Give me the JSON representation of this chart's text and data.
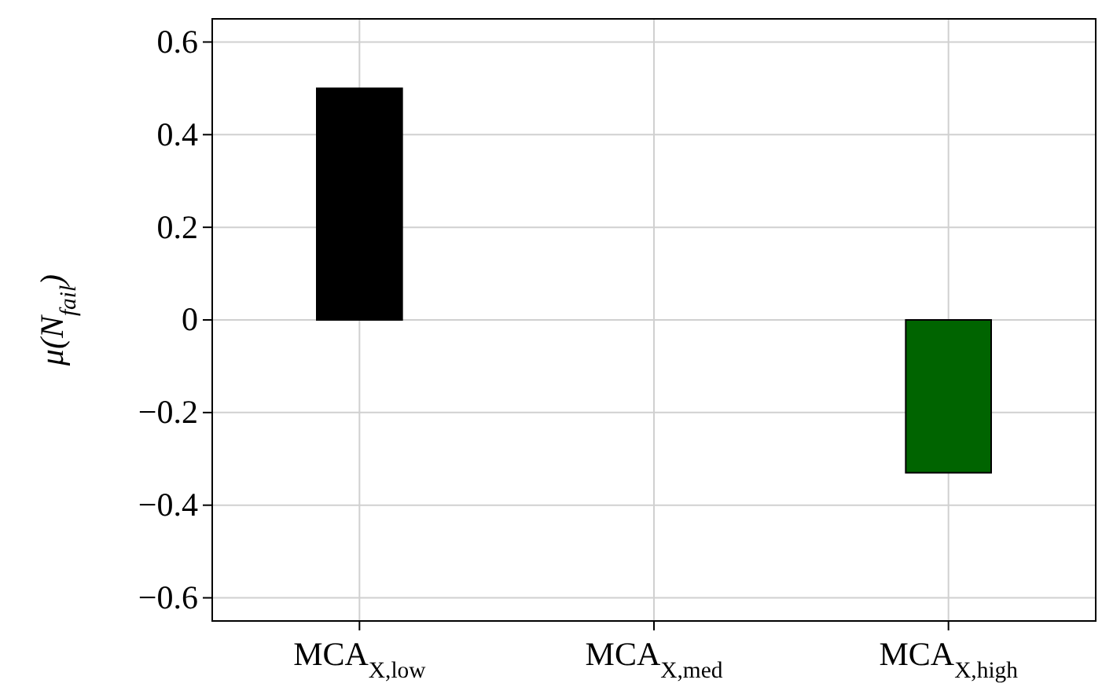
{
  "chart_data": {
    "type": "bar",
    "categories": [
      "MCA$_{X,low}$",
      "MCA$_{X,med}$",
      "MCA$_{X,high}$"
    ],
    "values": [
      0.5,
      0,
      -0.33
    ],
    "colors": [
      "#000000",
      "#000000",
      "#006400"
    ],
    "ylabel": "μ(N$_{fail}$)",
    "ylim": [
      -0.65,
      0.65
    ],
    "yticks": [
      {
        "value": -0.6,
        "label": "−0.6"
      },
      {
        "value": -0.4,
        "label": "−0.4"
      },
      {
        "value": -0.2,
        "label": "−0.2"
      },
      0,
      0.2,
      0.4,
      0.6
    ],
    "grid": true
  }
}
